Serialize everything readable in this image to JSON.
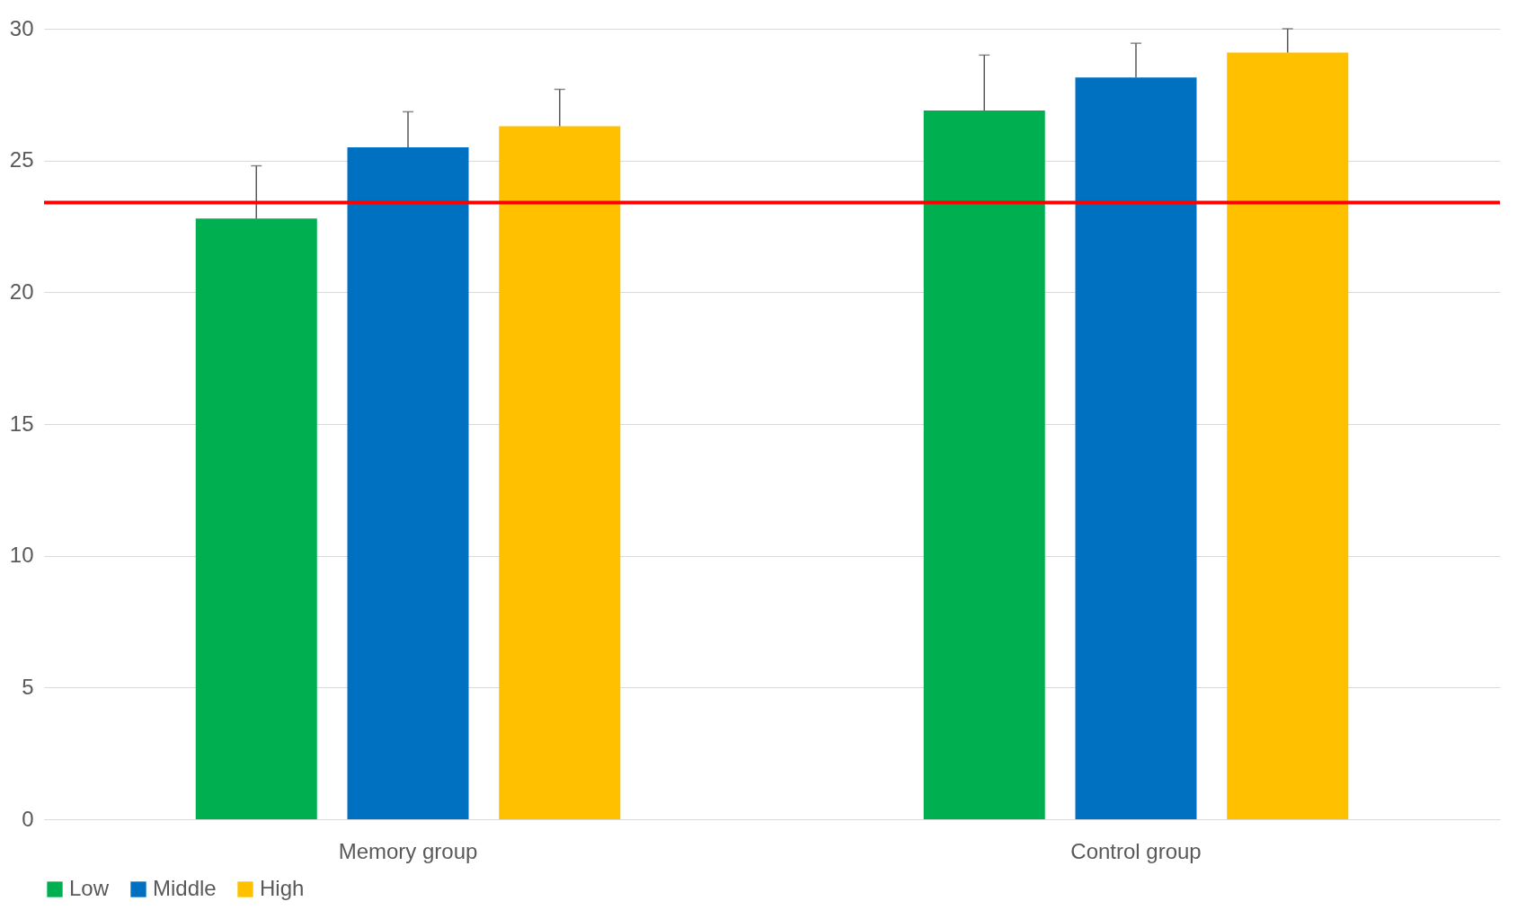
{
  "chart_data": {
    "type": "bar",
    "categories": [
      "Memory group",
      "Control group"
    ],
    "series": [
      {
        "name": "Low",
        "color": "#00b050",
        "values": [
          22.8,
          26.9
        ],
        "errors": [
          [
            22.8,
            24.8
          ],
          [
            26.9,
            29.0
          ]
        ]
      },
      {
        "name": "Middle",
        "color": "#0070c0",
        "values": [
          25.5,
          28.15
        ],
        "errors": [
          [
            25.5,
            26.85
          ],
          [
            28.15,
            29.45
          ]
        ]
      },
      {
        "name": "High",
        "color": "#ffc000",
        "values": [
          26.3,
          29.1
        ],
        "errors": [
          [
            26.3,
            27.7
          ],
          [
            29.1,
            30.0
          ]
        ]
      }
    ],
    "ylim": [
      0,
      30
    ],
    "yticks": [
      0,
      5,
      10,
      15,
      20,
      25,
      30
    ],
    "grid": "y",
    "legend": "bottom",
    "ref_lines": [
      {
        "axis": "y",
        "value": 23.4,
        "color": "#ff0000"
      }
    ]
  }
}
